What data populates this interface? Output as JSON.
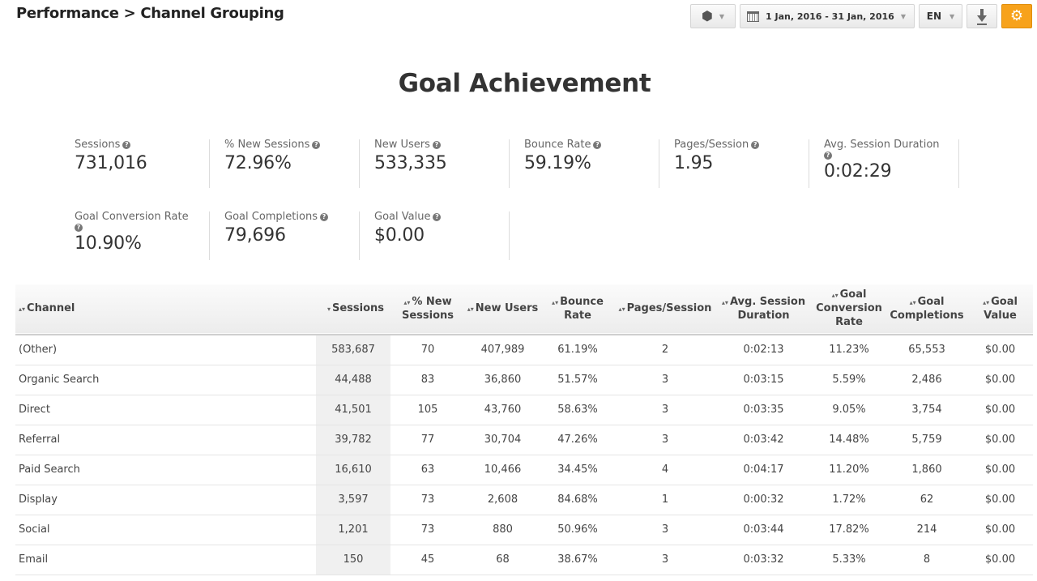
{
  "breadcrumb": "Performance > Channel Grouping",
  "toolbar": {
    "date_range": "1 Jan, 2016 - 31 Jan, 2016",
    "language": "EN",
    "accent_color": "#f7a21b"
  },
  "title": "Goal Achievement",
  "kpis": {
    "sessions": {
      "label": "Sessions",
      "value": "731,016"
    },
    "new_sessions_pct": {
      "label": "% New Sessions",
      "value": "72.96%"
    },
    "new_users": {
      "label": "New Users",
      "value": "533,335"
    },
    "bounce_rate": {
      "label": "Bounce Rate",
      "value": "59.19%"
    },
    "pages_session": {
      "label": "Pages/Session",
      "value": "1.95"
    },
    "avg_session_duration": {
      "label": "Avg. Session Duration",
      "value": "0:02:29"
    },
    "goal_conversion_rate": {
      "label": "Goal Conversion Rate",
      "value": "10.90%"
    },
    "goal_completions": {
      "label": "Goal Completions",
      "value": "79,696"
    },
    "goal_value": {
      "label": "Goal Value",
      "value": "$0.00"
    }
  },
  "table": {
    "headers": {
      "channel": "Channel",
      "sessions": "Sessions",
      "new_sessions": "% New Sessions",
      "new_users": "New Users",
      "bounce_rate": "Bounce Rate",
      "pages_session": "Pages/Session",
      "avg_duration": "Avg. Session Duration",
      "conv_rate": "Goal Conversion Rate",
      "completions": "Goal Completions",
      "goal_value": "Goal Value"
    },
    "rows": [
      [
        "(Other)",
        "583,687",
        "70",
        "407,989",
        "61.19%",
        "2",
        "0:02:13",
        "11.23%",
        "65,553",
        "$0.00"
      ],
      [
        "Organic Search",
        "44,488",
        "83",
        "36,860",
        "51.57%",
        "3",
        "0:03:15",
        "5.59%",
        "2,486",
        "$0.00"
      ],
      [
        "Direct",
        "41,501",
        "105",
        "43,760",
        "58.63%",
        "3",
        "0:03:35",
        "9.05%",
        "3,754",
        "$0.00"
      ],
      [
        "Referral",
        "39,782",
        "77",
        "30,704",
        "47.26%",
        "3",
        "0:03:42",
        "14.48%",
        "5,759",
        "$0.00"
      ],
      [
        "Paid Search",
        "16,610",
        "63",
        "10,466",
        "34.45%",
        "4",
        "0:04:17",
        "11.20%",
        "1,860",
        "$0.00"
      ],
      [
        "Display",
        "3,597",
        "73",
        "2,608",
        "84.68%",
        "1",
        "0:00:32",
        "1.72%",
        "62",
        "$0.00"
      ],
      [
        "Social",
        "1,201",
        "73",
        "880",
        "50.96%",
        "3",
        "0:03:44",
        "17.82%",
        "214",
        "$0.00"
      ],
      [
        "Email",
        "150",
        "45",
        "68",
        "38.67%",
        "3",
        "0:03:32",
        "5.33%",
        "8",
        "$0.00"
      ]
    ]
  }
}
